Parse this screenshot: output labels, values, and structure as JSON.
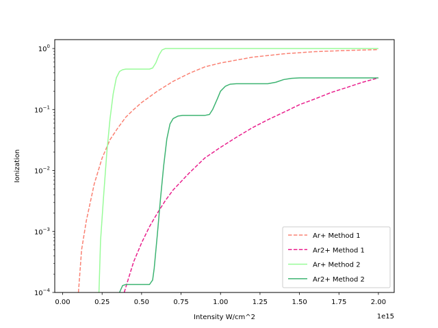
{
  "chart_data": {
    "type": "line",
    "xlabel": "Intensity W/cm^2",
    "ylabel": "Ionization",
    "x_offset_label": "1e15",
    "xlim": [
      -0.05,
      2.1
    ],
    "ylim": [
      0.0001,
      1.4
    ],
    "yscale": "log",
    "grid": false,
    "legend_position": "lower-right",
    "x_ticks": [
      "0.00",
      "0.25",
      "0.50",
      "0.75",
      "1.00",
      "1.25",
      "1.50",
      "1.75",
      "2.00"
    ],
    "y_ticks": [
      {
        "base": "10",
        "exp": "−4",
        "value": 0.0001
      },
      {
        "base": "10",
        "exp": "−3",
        "value": 0.001
      },
      {
        "base": "10",
        "exp": "−2",
        "value": 0.01
      },
      {
        "base": "10",
        "exp": "−1",
        "value": 0.1
      },
      {
        "base": "10",
        "exp": "0",
        "value": 1
      }
    ],
    "series": [
      {
        "name": "Ar+ Method 1",
        "color": "#fa8072",
        "dash": "dashed",
        "x": [
          0.1,
          0.12,
          0.15,
          0.2,
          0.25,
          0.3,
          0.35,
          0.4,
          0.45,
          0.5,
          0.6,
          0.7,
          0.8,
          0.9,
          1.0,
          1.2,
          1.4,
          1.6,
          1.8,
          2.0
        ],
        "y": [
          0.0001,
          0.0005,
          0.0015,
          0.006,
          0.016,
          0.032,
          0.05,
          0.075,
          0.1,
          0.13,
          0.2,
          0.29,
          0.39,
          0.5,
          0.58,
          0.72,
          0.82,
          0.89,
          0.93,
          0.96
        ]
      },
      {
        "name": "Ar2+ Method 1",
        "color": "#e91e8c",
        "dash": "dashed",
        "x": [
          0.39,
          0.42,
          0.45,
          0.5,
          0.55,
          0.6,
          0.65,
          0.7,
          0.8,
          0.9,
          1.0,
          1.1,
          1.2,
          1.3,
          1.4,
          1.5,
          1.6,
          1.7,
          1.8,
          1.9,
          2.0
        ],
        "y": [
          0.0001,
          0.00018,
          0.00032,
          0.00065,
          0.0012,
          0.002,
          0.0032,
          0.0048,
          0.009,
          0.016,
          0.024,
          0.035,
          0.05,
          0.068,
          0.09,
          0.12,
          0.15,
          0.19,
          0.23,
          0.28,
          0.33
        ]
      },
      {
        "name": "Ar+ Method 2",
        "color": "#98fb98",
        "dash": "solid",
        "x": [
          0.23,
          0.24,
          0.26,
          0.28,
          0.3,
          0.32,
          0.34,
          0.36,
          0.38,
          0.4,
          0.45,
          0.5,
          0.55,
          0.57,
          0.59,
          0.61,
          0.63,
          0.65,
          0.7,
          0.8,
          1.0,
          1.5,
          2.0
        ],
        "y": [
          0.0001,
          0.0007,
          0.004,
          0.02,
          0.07,
          0.18,
          0.33,
          0.42,
          0.45,
          0.46,
          0.46,
          0.46,
          0.46,
          0.48,
          0.58,
          0.78,
          0.95,
          1.0,
          1.0,
          1.0,
          1.0,
          1.0,
          1.0
        ]
      },
      {
        "name": "Ar2+ Method 2",
        "color": "#3cb371",
        "dash": "solid",
        "x": [
          0.36,
          0.38,
          0.4,
          0.45,
          0.5,
          0.55,
          0.57,
          0.58,
          0.6,
          0.62,
          0.64,
          0.66,
          0.68,
          0.7,
          0.73,
          0.76,
          0.8,
          0.85,
          0.9,
          0.93,
          0.95,
          0.98,
          1.0,
          1.03,
          1.06,
          1.1,
          1.2,
          1.3,
          1.35,
          1.4,
          1.45,
          1.5,
          1.6,
          1.8,
          2.0
        ],
        "y": [
          0.0001,
          0.00013,
          0.000135,
          0.000135,
          0.000135,
          0.000135,
          0.00016,
          0.00025,
          0.0009,
          0.0035,
          0.012,
          0.033,
          0.058,
          0.071,
          0.078,
          0.08,
          0.08,
          0.08,
          0.08,
          0.083,
          0.1,
          0.15,
          0.2,
          0.24,
          0.26,
          0.265,
          0.265,
          0.265,
          0.28,
          0.31,
          0.325,
          0.33,
          0.33,
          0.33,
          0.33
        ]
      }
    ]
  }
}
